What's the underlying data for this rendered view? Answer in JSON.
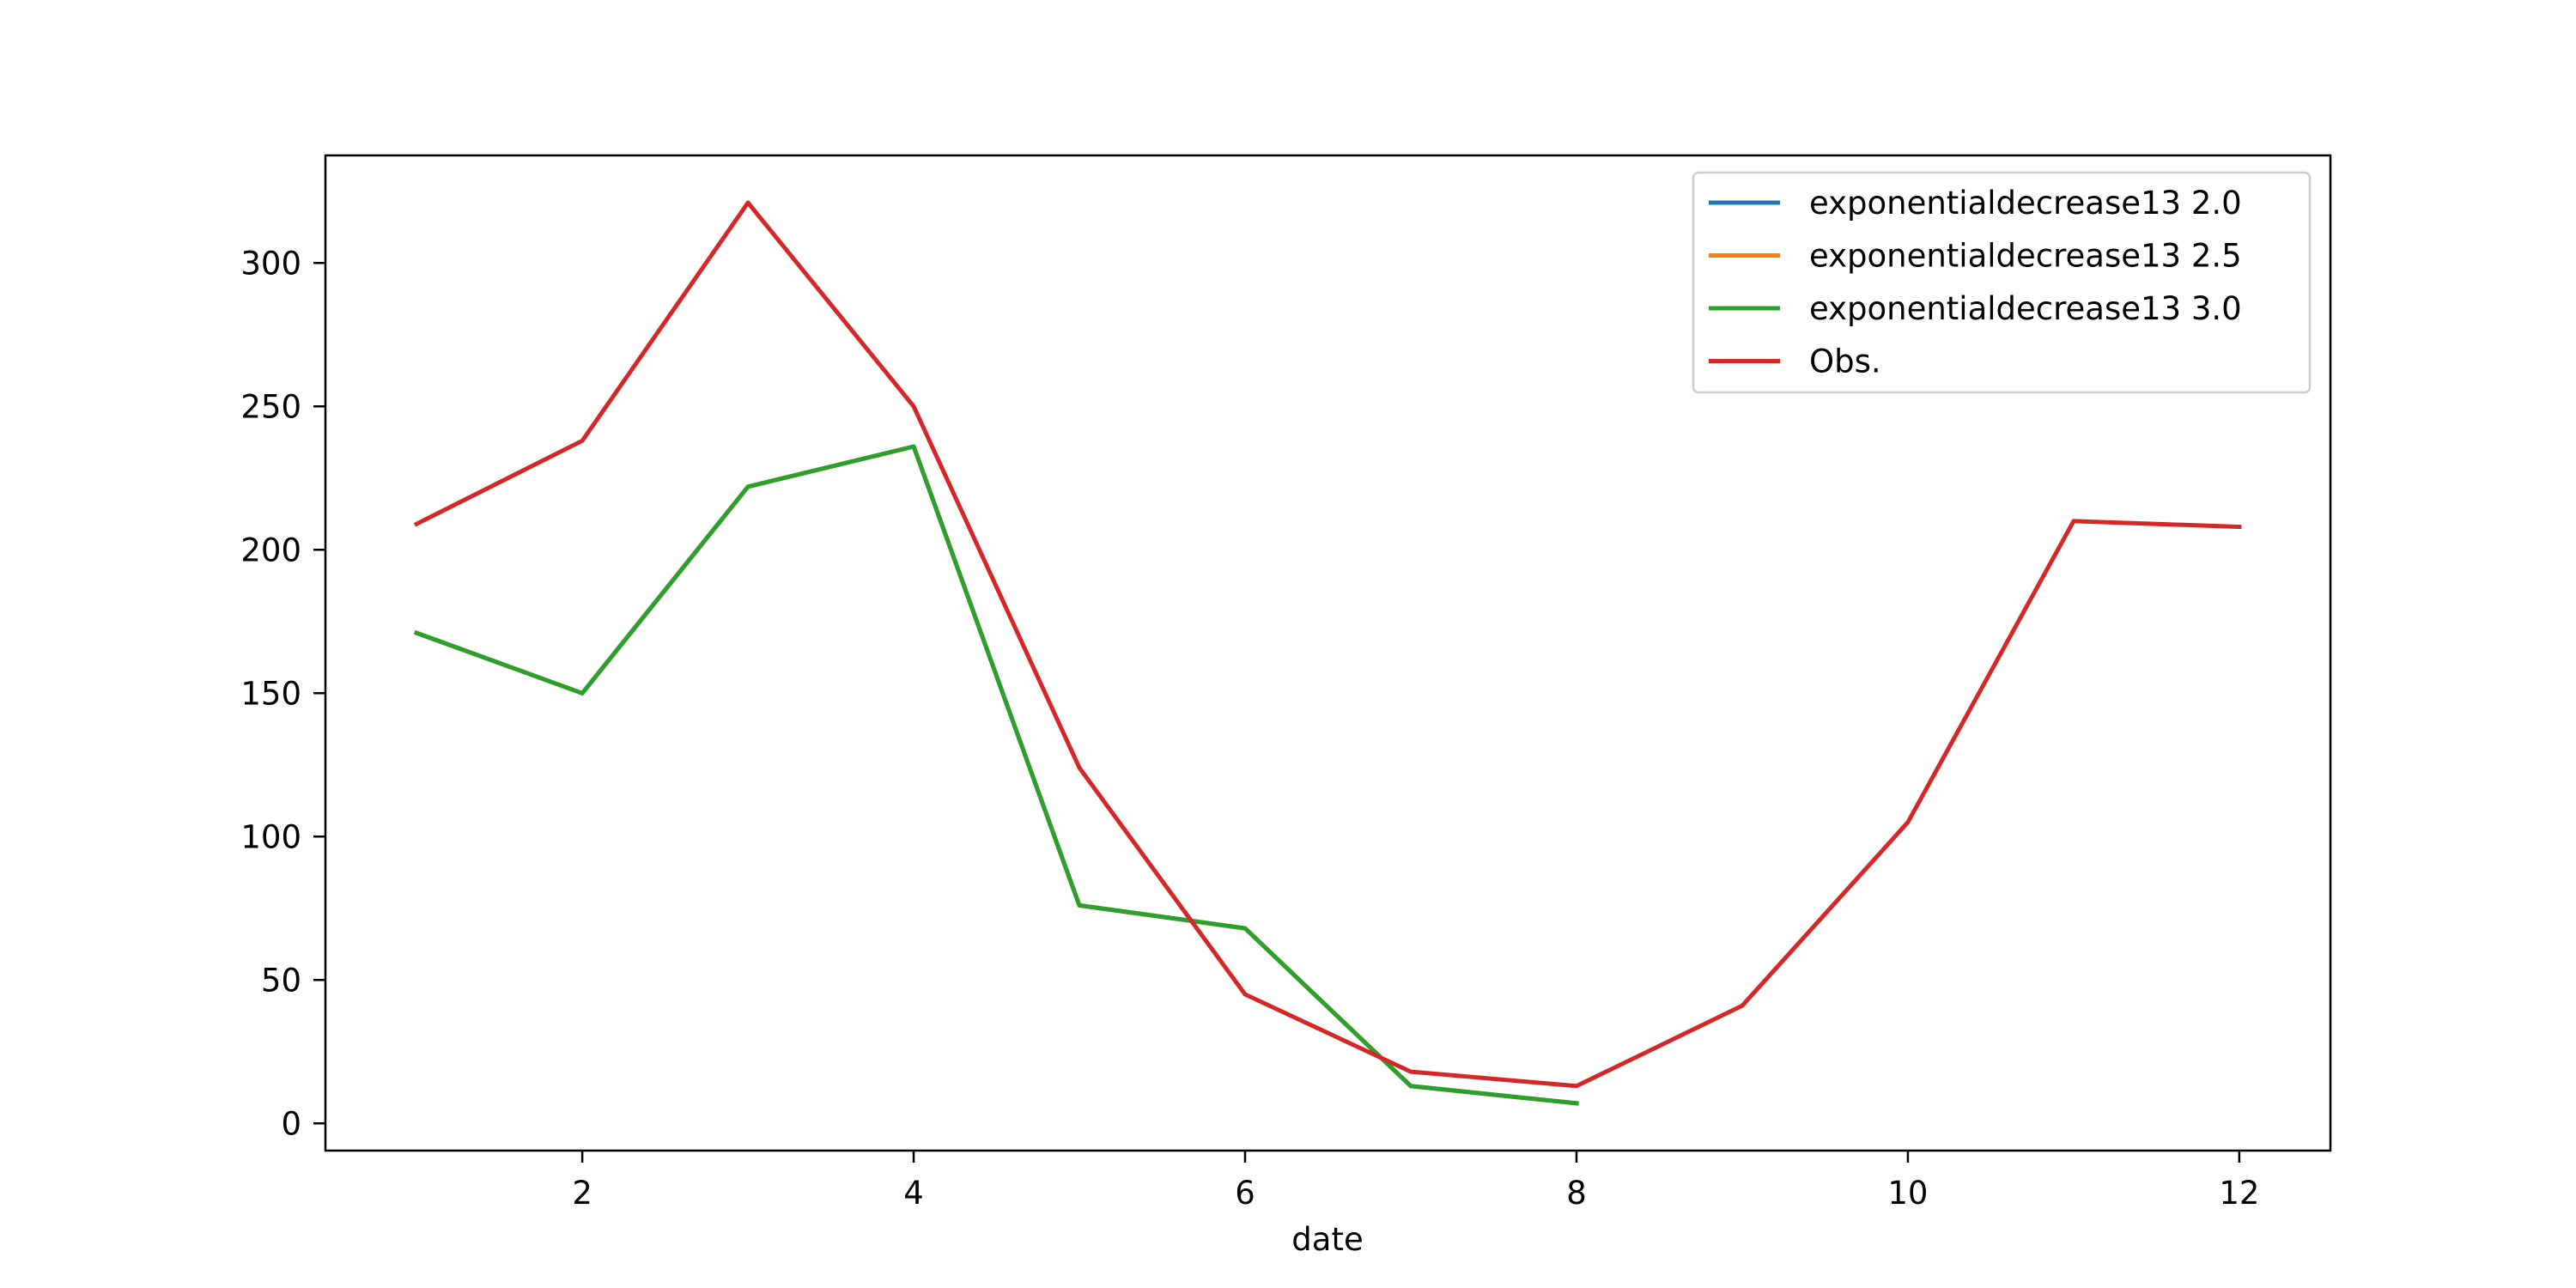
{
  "chart_data": {
    "type": "line",
    "title": "",
    "xlabel": "date",
    "ylabel": "",
    "xlim": [
      0.45,
      12.55
    ],
    "ylim": [
      -9.5,
      337.5
    ],
    "xticks": [
      2,
      4,
      6,
      8,
      10,
      12
    ],
    "yticks": [
      0,
      50,
      100,
      150,
      200,
      250,
      300
    ],
    "grid": false,
    "legend_position": "top-right",
    "series": [
      {
        "name": "exponentialdecrease13 2.0",
        "color": "#1f77b4",
        "x": [
          1,
          2,
          3,
          4,
          5,
          6,
          7,
          8
        ],
        "y": [
          171,
          150,
          222,
          236,
          76,
          68,
          13,
          7
        ]
      },
      {
        "name": "exponentialdecrease13 2.5",
        "color": "#ff7f0e",
        "x": [
          1,
          2,
          3,
          4,
          5,
          6,
          7,
          8
        ],
        "y": [
          171,
          150,
          222,
          236,
          76,
          68,
          13,
          7
        ]
      },
      {
        "name": "exponentialdecrease13 3.0",
        "color": "#2ca02c",
        "x": [
          1,
          2,
          3,
          4,
          5,
          6,
          7,
          8
        ],
        "y": [
          171,
          150,
          222,
          236,
          76,
          68,
          13,
          7
        ]
      },
      {
        "name": "Obs.",
        "color": "#d62728",
        "x": [
          1,
          2,
          3,
          4,
          5,
          6,
          7,
          8,
          9,
          10,
          11,
          12
        ],
        "y": [
          209,
          238,
          321,
          250,
          124,
          45,
          18,
          13,
          41,
          105,
          210,
          208
        ]
      }
    ]
  }
}
